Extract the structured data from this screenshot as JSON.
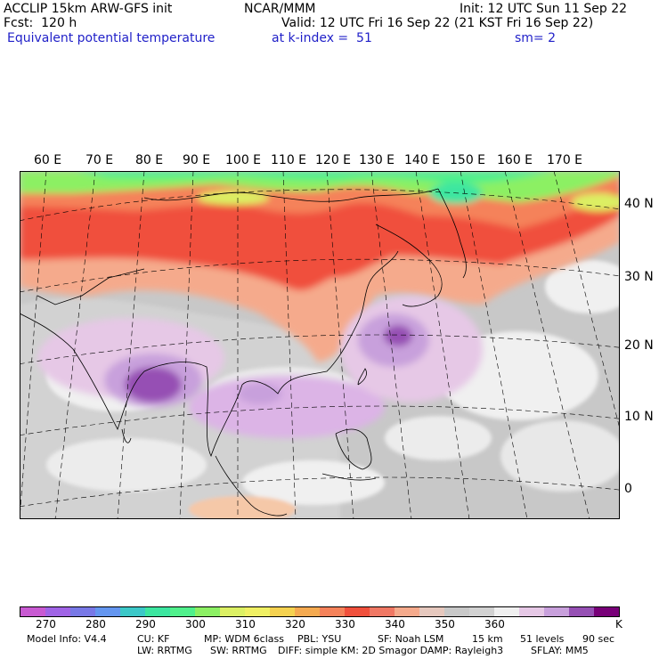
{
  "header": {
    "line1_left": "ACCLIP 15km ARW-GFS init",
    "line1_mid": "NCAR/MMM",
    "line1_right": "Init: 12 UTC Sun 11 Sep 22",
    "line2_left": "Fcst:  120 h",
    "line2_right": "Valid: 12 UTC Fri 16 Sep 22 (21 KST Fri 16 Sep 22)",
    "line3_left": "Equivalent potential temperature",
    "line3_mid": "at k-index =  51",
    "line3_right": "sm= 2"
  },
  "map": {
    "lon_labels": [
      "60 E",
      "70 E",
      "80 E",
      "90 E",
      "100 E",
      "110 E",
      "120 E",
      "130 E",
      "140 E",
      "150 E",
      "160 E",
      "170 E"
    ],
    "lat_labels": [
      "40 N",
      "30 N",
      "20 N",
      "10 N",
      "0"
    ]
  },
  "colorbar": {
    "colors": [
      "#c85ad2",
      "#a064e6",
      "#7878e6",
      "#6496f0",
      "#3cc8c8",
      "#3ce6a0",
      "#50f08c",
      "#8cf064",
      "#dcf064",
      "#f0f064",
      "#f5d250",
      "#f5aa50",
      "#f5825a",
      "#f0503c",
      "#f07864",
      "#f5aa8c",
      "#e6c8be",
      "#c8c8c8",
      "#d2d2d2",
      "#f0f0f0",
      "#e6c8e6",
      "#c8a0dc",
      "#9650b4",
      "#780078"
    ],
    "ticks": [
      "270",
      "280",
      "290",
      "300",
      "310",
      "320",
      "330",
      "340",
      "350",
      "360"
    ],
    "unit": "K"
  },
  "footer": {
    "model_info": "Model Info: V4.4",
    "cu": "CU: KF",
    "mp": "MP: WDM 6class",
    "pbl": "PBL: YSU",
    "sf": "SF: Noah LSM",
    "res": "15 km",
    "levels": "51 levels",
    "dt": "90 sec",
    "lw": "LW: RRTMG",
    "sw": "SW: RRTMG",
    "diff": "DIFF: simple KM: 2D Smagor DAMP: Rayleigh3",
    "sflay": "SFLAY: MM5"
  }
}
